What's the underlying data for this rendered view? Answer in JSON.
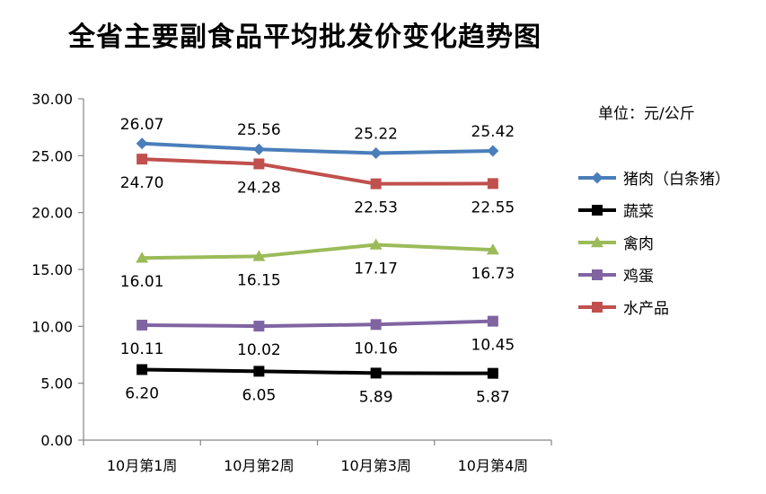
{
  "title": "全省主要副食品平均批发价变化趋势图",
  "unit": "单位：元/公斤",
  "chart_data": {
    "type": "line",
    "title": "全省主要副食品平均批发价变化趋势图",
    "categories": [
      "10月第1周",
      "10月第2周",
      "10月第3周",
      "10月第4周"
    ],
    "ylim": [
      0,
      30
    ],
    "yticks": [
      "0.00",
      "5.00",
      "10.00",
      "15.00",
      "20.00",
      "25.00",
      "30.00"
    ],
    "grid": false,
    "legend_position": "right",
    "series": [
      {
        "name": "猪肉（白条猪）",
        "color": "#4a7ebb",
        "marker": "diamond",
        "label_pos": "above",
        "values": [
          26.07,
          25.56,
          25.22,
          25.42
        ],
        "labels": [
          "26.07",
          "25.56",
          "25.22",
          "25.42"
        ]
      },
      {
        "name": "蔬菜",
        "color": "#000000",
        "marker": "square",
        "label_pos": "below",
        "values": [
          6.2,
          6.05,
          5.89,
          5.87
        ],
        "labels": [
          "6.20",
          "6.05",
          "5.89",
          "5.87"
        ]
      },
      {
        "name": "禽肉",
        "color": "#9bbb59",
        "marker": "triangle",
        "label_pos": "below",
        "values": [
          16.01,
          16.15,
          17.17,
          16.73
        ],
        "labels": [
          "16.01",
          "16.15",
          "17.17",
          "16.73"
        ]
      },
      {
        "name": "鸡蛋",
        "color": "#8064a2",
        "marker": "square",
        "label_pos": "below",
        "values": [
          10.11,
          10.02,
          10.16,
          10.45
        ],
        "labels": [
          "10.11",
          "10.02",
          "10.16",
          "10.45"
        ]
      },
      {
        "name": "水产品",
        "color": "#c0504d",
        "marker": "square",
        "label_pos": "below",
        "values": [
          24.7,
          24.28,
          22.53,
          22.55
        ],
        "labels": [
          "24.70",
          "24.28",
          "22.53",
          "22.55"
        ]
      }
    ]
  }
}
